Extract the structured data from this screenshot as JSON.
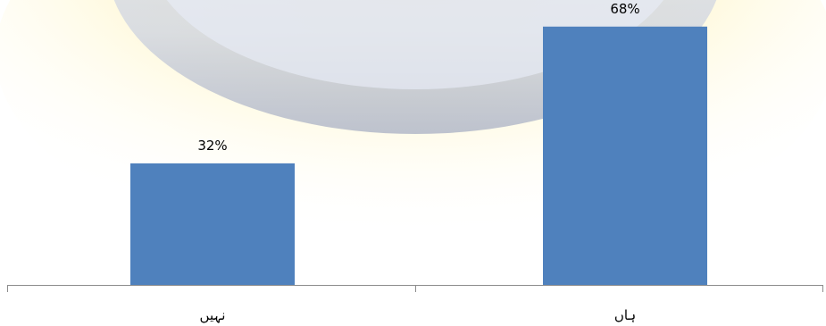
{
  "chart_data": {
    "type": "bar",
    "categories": [
      "نہیں",
      "ہاں"
    ],
    "values": [
      32,
      68
    ],
    "data_labels": [
      "32%",
      "68%"
    ],
    "ylim": [
      0,
      75
    ],
    "grid": false,
    "colors": {
      "bar": "#4f81bd",
      "axis": "#8c8c8c"
    }
  }
}
